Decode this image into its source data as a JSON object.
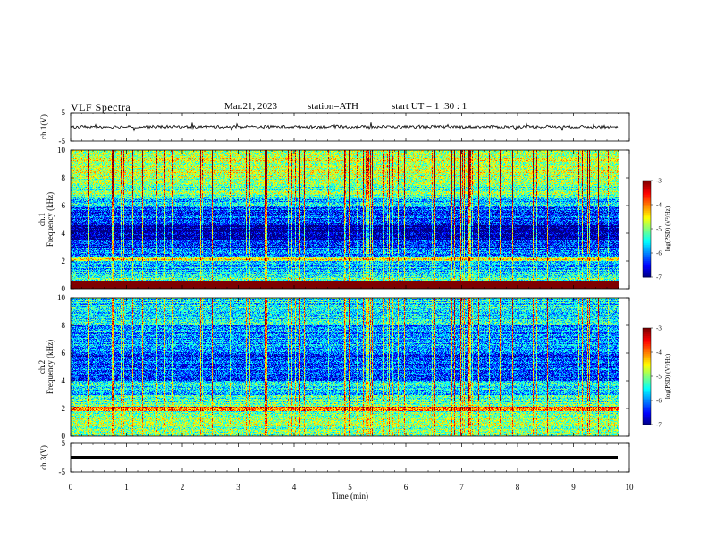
{
  "header": {
    "title": "VLF  Spectra",
    "date": "Mar.21, 2023",
    "station": "station=ATH",
    "start": "start  UT  =   1  :30 : 1"
  },
  "chart_data": [
    {
      "type": "line",
      "id": "ch1",
      "ylabel": "ch.1(V)",
      "yticks": [
        "5",
        "-5"
      ],
      "ylim": [
        -5,
        5
      ],
      "xlim": [
        0,
        10
      ],
      "series": [
        {
          "baseline": 0.0,
          "noise_amplitude": 1.0,
          "color": "#000000",
          "x_end_min": 9.8
        }
      ]
    },
    {
      "type": "heatmap",
      "id": "ch1_spectrogram",
      "ylabel_top": "ch.1",
      "ylabel": "Frequency  (kHz)",
      "yticks": [
        "0",
        "2",
        "4",
        "6",
        "8",
        "10"
      ],
      "ylim": [
        0,
        10
      ],
      "xlim": [
        0,
        10
      ],
      "x_end_min": 9.8,
      "colorbar": {
        "label": "log(PSD) (V²/Hz)",
        "ticks": [
          "-3",
          "-4",
          "-5",
          "-6",
          "-7"
        ],
        "range": [
          -7,
          -3
        ]
      },
      "bands_khz": [
        [
          0.0,
          0.6,
          -2.2
        ],
        [
          0.6,
          1.0,
          -5.2
        ],
        [
          1.0,
          2.0,
          -5.7
        ],
        [
          2.0,
          2.3,
          -4.6
        ],
        [
          2.3,
          3.0,
          -6.1
        ],
        [
          3.0,
          3.5,
          -6.4
        ],
        [
          3.5,
          4.6,
          -6.9
        ],
        [
          4.6,
          5.0,
          -6.4
        ],
        [
          5.0,
          5.9,
          -6.2
        ],
        [
          5.9,
          6.5,
          -5.7
        ],
        [
          6.5,
          8.0,
          -5.1
        ],
        [
          8.0,
          10.0,
          -4.8
        ]
      ]
    },
    {
      "type": "heatmap",
      "id": "ch2_spectrogram",
      "ylabel_top": "ch.2",
      "ylabel": "Frequency  (kHz)",
      "yticks": [
        "0",
        "2",
        "4",
        "6",
        "8",
        "10"
      ],
      "ylim": [
        0,
        10
      ],
      "xlim": [
        0,
        10
      ],
      "x_end_min": 9.8,
      "colorbar": {
        "label": "log(PSD) (V²/Hz)",
        "ticks": [
          "-3",
          "-4",
          "-5",
          "-6",
          "-7"
        ],
        "range": [
          -7,
          -3
        ]
      },
      "bands_khz": [
        [
          0.0,
          0.6,
          -5.0
        ],
        [
          0.6,
          1.4,
          -4.9
        ],
        [
          1.4,
          1.8,
          -5.1
        ],
        [
          1.8,
          2.1,
          -4.0
        ],
        [
          2.1,
          3.0,
          -5.2
        ],
        [
          3.0,
          4.0,
          -5.6
        ],
        [
          4.0,
          5.0,
          -6.1
        ],
        [
          5.0,
          6.0,
          -6.3
        ],
        [
          6.0,
          8.0,
          -5.9
        ],
        [
          8.0,
          10.0,
          -5.5
        ]
      ]
    },
    {
      "type": "line",
      "id": "ch3",
      "ylabel": "ch.3(V)",
      "yticks": [
        "5",
        "-5"
      ],
      "ylim": [
        -5,
        5
      ],
      "xlim": [
        0,
        10
      ],
      "series": [
        {
          "baseline": 0.0,
          "noise_amplitude": 0.0,
          "color": "#000000",
          "x_end_min": 9.8
        }
      ]
    }
  ],
  "x_axis": {
    "label": "Time  (min)",
    "ticks": [
      "0",
      "1",
      "2",
      "3",
      "4",
      "5",
      "6",
      "7",
      "8",
      "9",
      "10"
    ]
  }
}
